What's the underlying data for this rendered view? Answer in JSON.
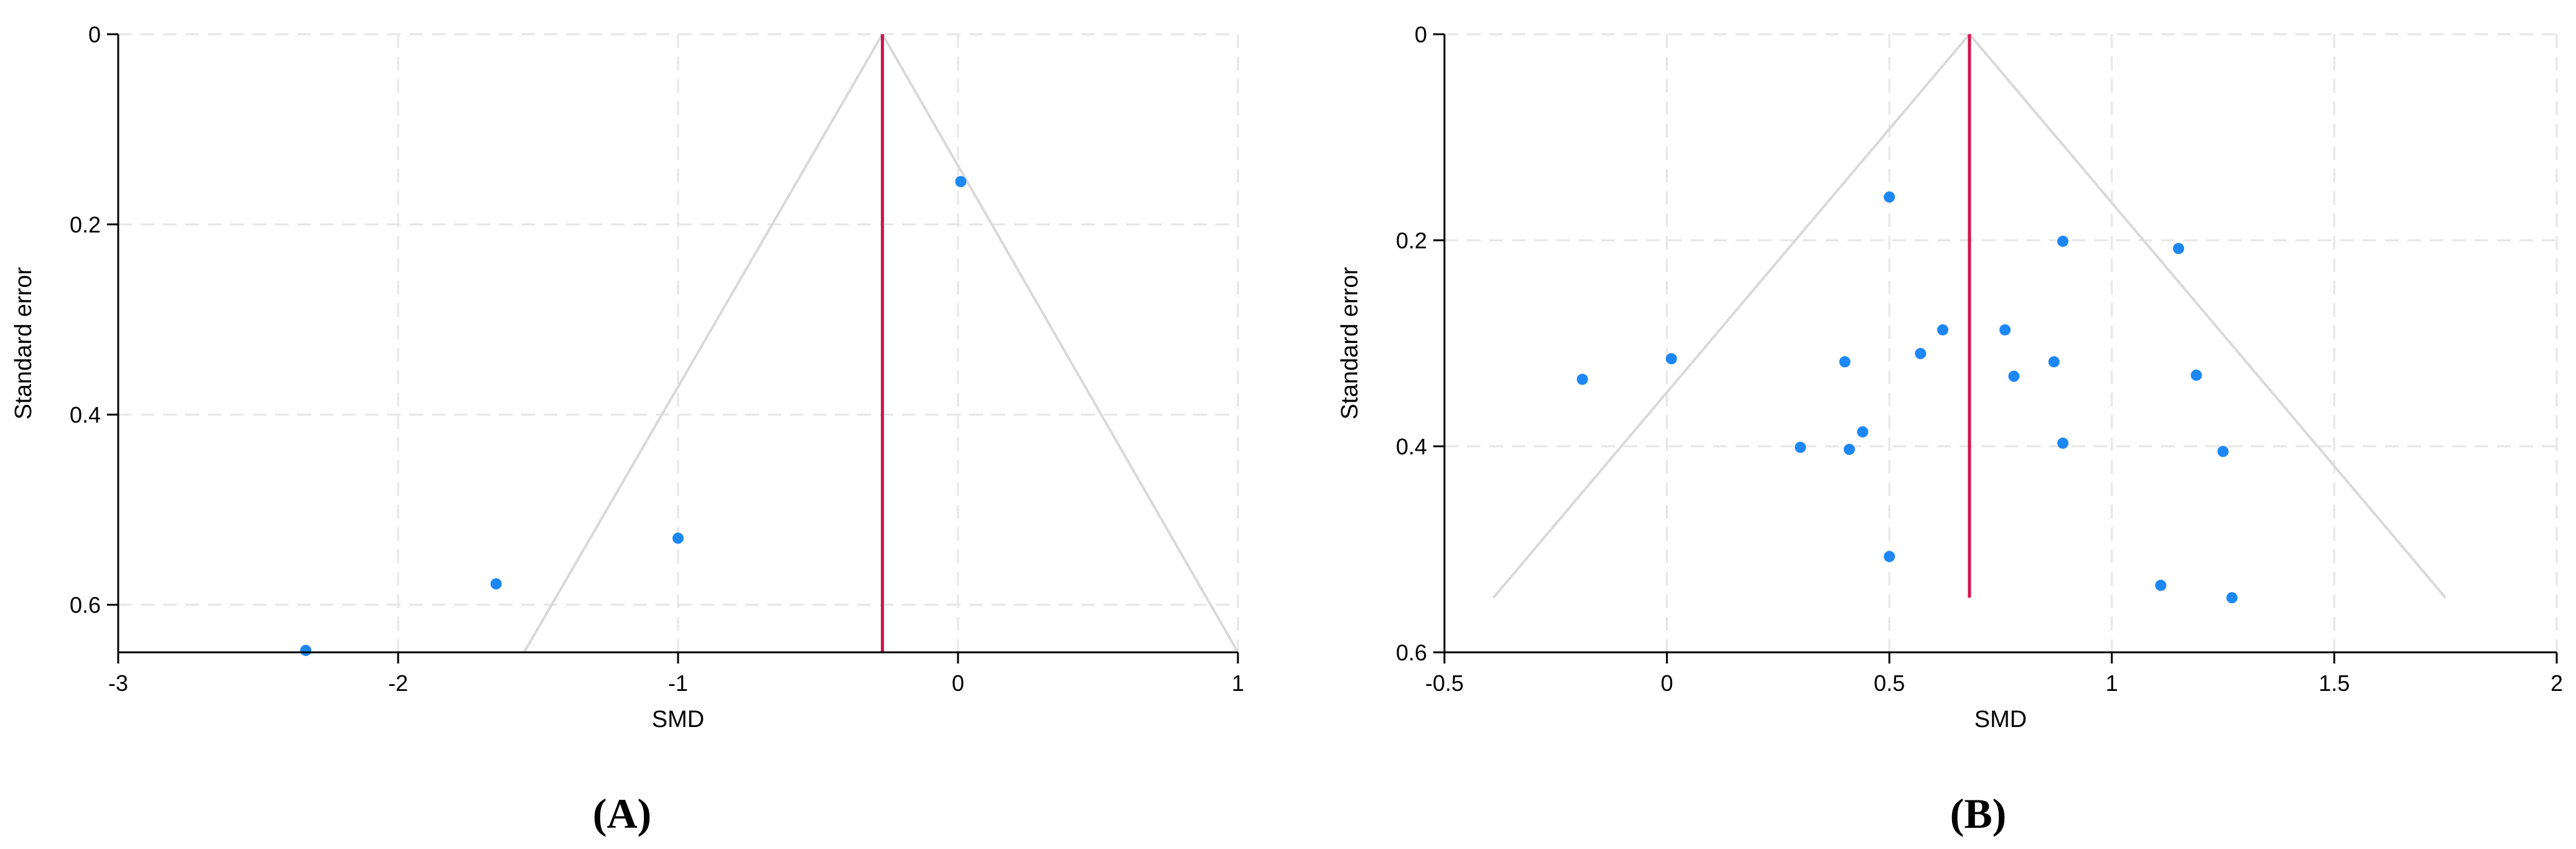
{
  "chart_data": [
    {
      "type": "scatter",
      "panel_label": "(A)",
      "xlabel": "SMD",
      "ylabel": "Standard error",
      "xlim": [
        -3,
        1
      ],
      "ylim": [
        0,
        0.65
      ],
      "y_reversed": true,
      "xticks": [
        -3,
        -2,
        -1,
        0,
        1
      ],
      "xtick_labels": [
        "-3",
        "-2",
        "-1",
        "0",
        "1"
      ],
      "yticks": [
        0,
        0.2,
        0.4,
        0.6
      ],
      "ytick_labels": [
        "0",
        "0.2",
        "0.4",
        "0.6"
      ],
      "grid": true,
      "pooled_effect": -0.27,
      "funnel": {
        "apex": [
          -0.27,
          0
        ],
        "bottom_se": 0.65,
        "bottom_left": -1.55,
        "bottom_right": 1.0
      },
      "points": [
        {
          "x": 0.01,
          "y": 0.155
        },
        {
          "x": -1.0,
          "y": 0.53
        },
        {
          "x": -1.65,
          "y": 0.578
        },
        {
          "x": -2.33,
          "y": 0.648
        }
      ],
      "colors": {
        "points": "#1c87f5",
        "effect_line": "#d4124e",
        "funnel": "#d9d9d9",
        "grid": "#e6e6e6"
      }
    },
    {
      "type": "scatter",
      "panel_label": "(B)",
      "xlabel": "SMD",
      "ylabel": "Standard error",
      "xlim": [
        -0.5,
        2
      ],
      "ylim": [
        0,
        0.6
      ],
      "y_reversed": true,
      "xticks": [
        -0.5,
        0,
        0.5,
        1,
        1.5,
        2
      ],
      "xtick_labels": [
        "-0.5",
        "0",
        "0.5",
        "1",
        "1.5",
        "2"
      ],
      "yticks": [
        0,
        0.2,
        0.4,
        0.6
      ],
      "ytick_labels": [
        "0",
        "0.2",
        "0.4",
        "0.6"
      ],
      "grid": true,
      "pooled_effect": 0.68,
      "funnel": {
        "apex": [
          0.68,
          0
        ],
        "bottom_se": 0.547,
        "bottom_left": -0.39,
        "bottom_right": 1.75
      },
      "points": [
        {
          "x": 0.5,
          "y": 0.158
        },
        {
          "x": 0.89,
          "y": 0.201
        },
        {
          "x": 1.15,
          "y": 0.208
        },
        {
          "x": 0.62,
          "y": 0.287
        },
        {
          "x": 0.76,
          "y": 0.287
        },
        {
          "x": 0.57,
          "y": 0.31
        },
        {
          "x": 0.01,
          "y": 0.315
        },
        {
          "x": 0.4,
          "y": 0.318
        },
        {
          "x": 0.87,
          "y": 0.318
        },
        {
          "x": 0.78,
          "y": 0.332
        },
        {
          "x": 1.19,
          "y": 0.331
        },
        {
          "x": -0.19,
          "y": 0.335
        },
        {
          "x": 0.44,
          "y": 0.386
        },
        {
          "x": 0.89,
          "y": 0.397
        },
        {
          "x": 0.3,
          "y": 0.401
        },
        {
          "x": 0.41,
          "y": 0.403
        },
        {
          "x": 1.25,
          "y": 0.405
        },
        {
          "x": 0.5,
          "y": 0.507
        },
        {
          "x": 1.11,
          "y": 0.535
        },
        {
          "x": 1.27,
          "y": 0.547
        }
      ],
      "colors": {
        "points": "#1c87f5",
        "effect_line": "#d4124e",
        "funnel": "#d9d9d9",
        "grid": "#e6e6e6"
      }
    }
  ]
}
